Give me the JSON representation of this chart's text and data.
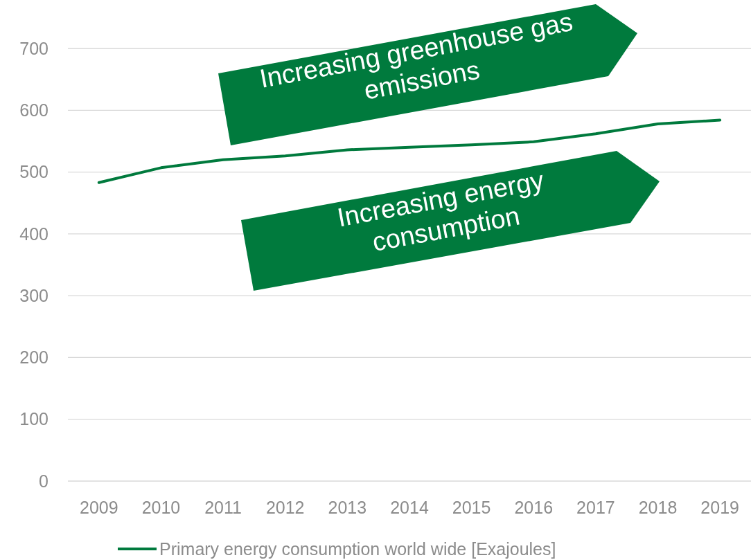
{
  "chart_data": {
    "type": "line",
    "categories": [
      "2009",
      "2010",
      "2011",
      "2012",
      "2013",
      "2014",
      "2015",
      "2016",
      "2017",
      "2018",
      "2019"
    ],
    "series": [
      {
        "name": "Primary energy consumption world wide [Exajoules]",
        "color": "#007a3d",
        "values": [
          483,
          507,
          520,
          526,
          536,
          540,
          544,
          549,
          562,
          578,
          584
        ]
      }
    ],
    "ylim": [
      0,
      700
    ],
    "yticks": [
      0,
      100,
      200,
      300,
      400,
      500,
      600,
      700
    ],
    "grid": "y",
    "legend": "bottom",
    "marker": "none",
    "line_style": "solid",
    "annotations": [
      "Increasing greenhouse gas emissions",
      "Increasing energy consumption"
    ]
  }
}
